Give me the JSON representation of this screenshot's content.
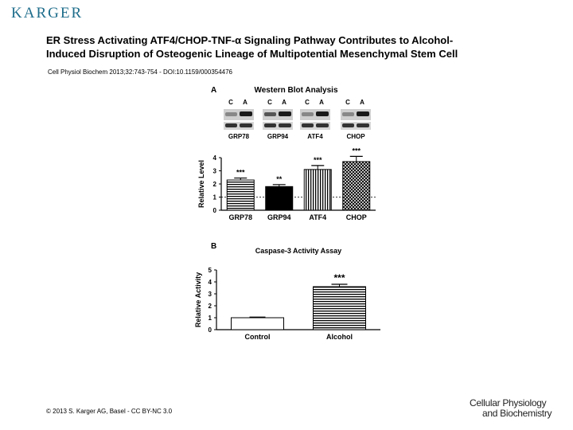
{
  "header": {
    "publisher": "KARGER"
  },
  "paper": {
    "title_line1": "ER Stress Activating ATF4/CHOP-TNF-α Signaling Pathway Contributes to Alcohol-",
    "title_line2": "Induced Disruption of Osteogenic Lineage of Multipotential Mesenchymal Stem Cell",
    "citation": "Cell Physiol Biochem 2013;32:743-754 - DOI:10.1159/000354476"
  },
  "panel_a": {
    "letter": "A",
    "title": "Western Blot Analysis",
    "lane_labels": [
      "C",
      "A"
    ],
    "blot_labels": [
      "GRP78",
      "GRP94",
      "ATF4",
      "CHOP"
    ]
  },
  "panel_b": {
    "letter": "B"
  },
  "chart_data": [
    {
      "type": "bar",
      "title": "",
      "categories": [
        "GRP78",
        "GRP94",
        "ATF4",
        "CHOP"
      ],
      "values": [
        2.3,
        1.8,
        3.1,
        3.7
      ],
      "errors": [
        0.15,
        0.15,
        0.3,
        0.4
      ],
      "significance": [
        "***",
        "**",
        "***",
        "***"
      ],
      "reference_line": 1,
      "ylabel": "Relative Level",
      "ylim": [
        0,
        4
      ],
      "yticks": [
        0,
        1,
        2,
        3,
        4
      ],
      "fills": [
        "horizontal-stripes",
        "solid",
        "vertical-stripes",
        "crosshatch"
      ]
    },
    {
      "type": "bar",
      "title": "Caspase-3 Activity Assay",
      "categories": [
        "Control",
        "Alcohol"
      ],
      "values": [
        1.0,
        3.6
      ],
      "errors": [
        0.05,
        0.2
      ],
      "significance": [
        "",
        "***"
      ],
      "ylabel": "Relative Activity",
      "ylim": [
        0,
        5
      ],
      "yticks": [
        0,
        1,
        2,
        3,
        4,
        5
      ],
      "fills": [
        "white",
        "horizontal-stripes"
      ]
    }
  ],
  "footer": {
    "copyright": "© 2013 S. Karger AG, Basel - CC BY-NC 3.0",
    "journal_line1": "Cellular Physiology",
    "journal_line2": "and Biochemistry"
  }
}
